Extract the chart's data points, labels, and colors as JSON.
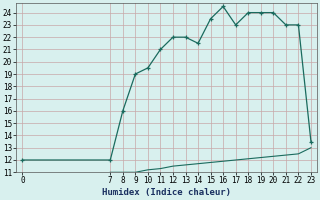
{
  "xlabel": "Humidex (Indice chaleur)",
  "bg_color": "#d8f0ee",
  "grid_major_color": "#c8a8a8",
  "grid_minor_color": "#ddd0d0",
  "line_color": "#1a6b5e",
  "upper_x": [
    0,
    7,
    8,
    9,
    10,
    11,
    12,
    13,
    14,
    15,
    16,
    17,
    18,
    19,
    20,
    21,
    22,
    23
  ],
  "upper_y": [
    12,
    12,
    16,
    19,
    19.5,
    21,
    22,
    22,
    21.5,
    23.5,
    24.5,
    23.0,
    24,
    24,
    24,
    23,
    23,
    13.5
  ],
  "lower_x": [
    7,
    8,
    9,
    10,
    11,
    12,
    13,
    14,
    15,
    16,
    17,
    18,
    19,
    20,
    21,
    22,
    23
  ],
  "lower_y": [
    11,
    11,
    11,
    11.2,
    11.3,
    11.5,
    11.6,
    11.7,
    11.8,
    11.9,
    12.0,
    12.1,
    12.2,
    12.3,
    12.4,
    12.5,
    13
  ],
  "xlim": [
    -0.5,
    23.5
  ],
  "ylim": [
    11,
    24.8
  ],
  "xticks": [
    0,
    7,
    8,
    9,
    10,
    11,
    12,
    13,
    14,
    15,
    16,
    17,
    18,
    19,
    20,
    21,
    22,
    23
  ],
  "yticks": [
    11,
    12,
    13,
    14,
    15,
    16,
    17,
    18,
    19,
    20,
    21,
    22,
    23,
    24
  ],
  "label_color": "#1a3060",
  "label_fontsize": 6.5,
  "tick_fontsize": 5.5
}
